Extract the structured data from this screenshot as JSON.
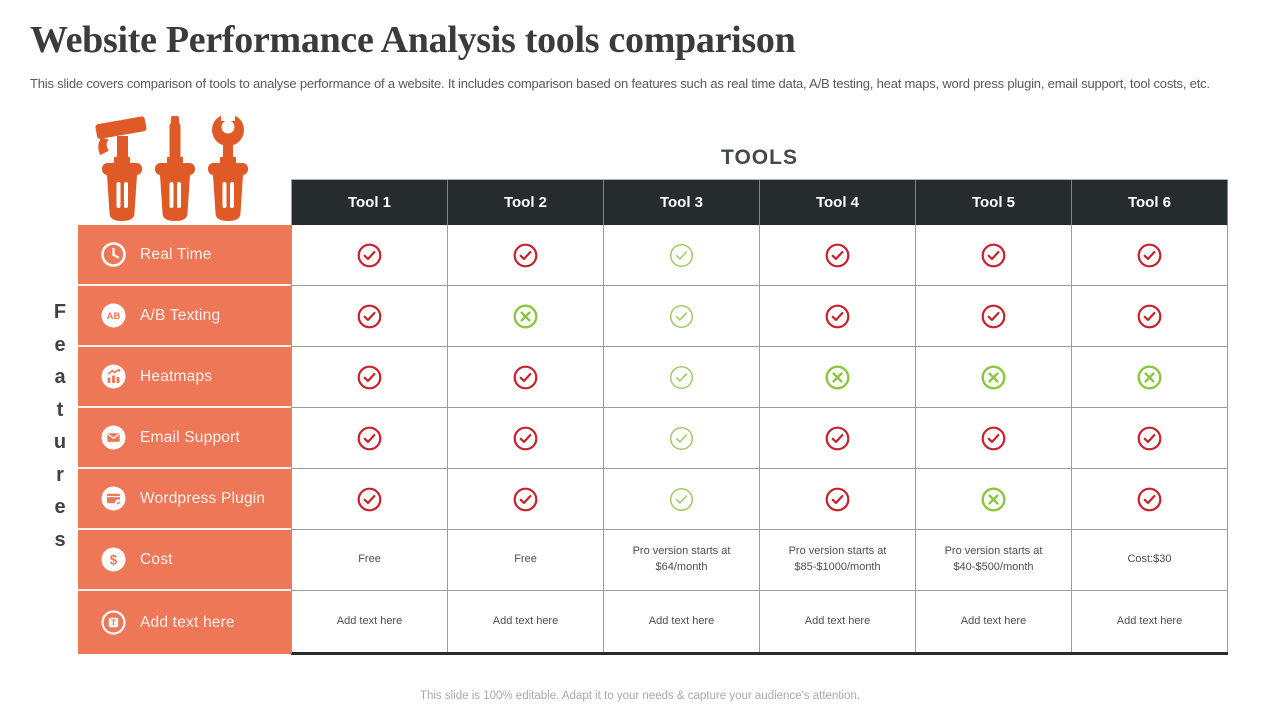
{
  "header": {
    "title": "Website Performance Analysis tools comparison",
    "subtitle": "This slide covers comparison of tools to analyse performance of a website. It includes comparison based on features such as real time data, A/B testing, heat maps, word press plugin, email support, tool costs, etc."
  },
  "tools_graphic": {
    "icons": [
      "hammer-icon",
      "screwdriver-icon",
      "wrench-icon"
    ],
    "color": "#DF5A26"
  },
  "table": {
    "tools_label": "TOOLS",
    "features_label": "Features",
    "columns": [
      "Tool 1",
      "Tool 2",
      "Tool 3",
      "Tool 4",
      "Tool 5",
      "Tool 6"
    ],
    "mark_colors": {
      "red": "#C9202B",
      "green": "#8CC63F",
      "green_light": "#9CCB63"
    },
    "feature_column_color": "#ED7757",
    "header_color": "#262B2D",
    "rows": [
      {
        "feature": "Real Time",
        "icon": "clock-icon",
        "cells": [
          {
            "kind": "check",
            "tone": "red"
          },
          {
            "kind": "check",
            "tone": "red"
          },
          {
            "kind": "check",
            "tone": "green_light"
          },
          {
            "kind": "check",
            "tone": "red"
          },
          {
            "kind": "check",
            "tone": "red"
          },
          {
            "kind": "check",
            "tone": "red"
          }
        ]
      },
      {
        "feature": "A/B Texting",
        "icon": "ab-icon",
        "cells": [
          {
            "kind": "check",
            "tone": "red"
          },
          {
            "kind": "cross",
            "tone": "green"
          },
          {
            "kind": "check",
            "tone": "green_light"
          },
          {
            "kind": "check",
            "tone": "red"
          },
          {
            "kind": "check",
            "tone": "red"
          },
          {
            "kind": "check",
            "tone": "red"
          }
        ]
      },
      {
        "feature": "Heatmaps",
        "icon": "heatmaps-icon",
        "cells": [
          {
            "kind": "check",
            "tone": "red"
          },
          {
            "kind": "check",
            "tone": "red"
          },
          {
            "kind": "check",
            "tone": "green_light"
          },
          {
            "kind": "cross",
            "tone": "green"
          },
          {
            "kind": "cross",
            "tone": "green"
          },
          {
            "kind": "cross",
            "tone": "green"
          }
        ]
      },
      {
        "feature": "Email Support",
        "icon": "email-icon",
        "cells": [
          {
            "kind": "check",
            "tone": "red"
          },
          {
            "kind": "check",
            "tone": "red"
          },
          {
            "kind": "check",
            "tone": "green_light"
          },
          {
            "kind": "check",
            "tone": "red"
          },
          {
            "kind": "check",
            "tone": "red"
          },
          {
            "kind": "check",
            "tone": "red"
          }
        ]
      },
      {
        "feature": "Wordpress Plugin",
        "icon": "wordpress-icon",
        "cells": [
          {
            "kind": "check",
            "tone": "red"
          },
          {
            "kind": "check",
            "tone": "red"
          },
          {
            "kind": "check",
            "tone": "green_light"
          },
          {
            "kind": "check",
            "tone": "red"
          },
          {
            "kind": "cross",
            "tone": "green"
          },
          {
            "kind": "check",
            "tone": "red"
          }
        ]
      },
      {
        "feature": "Cost",
        "icon": "dollar-icon",
        "cells": [
          {
            "kind": "text",
            "text": "Free"
          },
          {
            "kind": "text",
            "text": "Free"
          },
          {
            "kind": "text",
            "text": "Pro version  starts at $64/month"
          },
          {
            "kind": "text",
            "text": "Pro version  starts at $85-$1000/month"
          },
          {
            "kind": "text",
            "text": "Pro version  starts at $40-$500/month"
          },
          {
            "kind": "text",
            "text": "Cost:$30"
          }
        ]
      },
      {
        "feature": "Add text here",
        "icon": "add-text-icon",
        "cells": [
          {
            "kind": "text",
            "text": "Add text here"
          },
          {
            "kind": "text",
            "text": "Add text here"
          },
          {
            "kind": "text",
            "text": "Add text here"
          },
          {
            "kind": "text",
            "text": "Add text here"
          },
          {
            "kind": "text",
            "text": "Add text here"
          },
          {
            "kind": "text",
            "text": "Add text here"
          }
        ]
      }
    ]
  },
  "footer": {
    "note": "This slide is 100% editable. Adapt it to your needs & capture your audience's attention."
  }
}
